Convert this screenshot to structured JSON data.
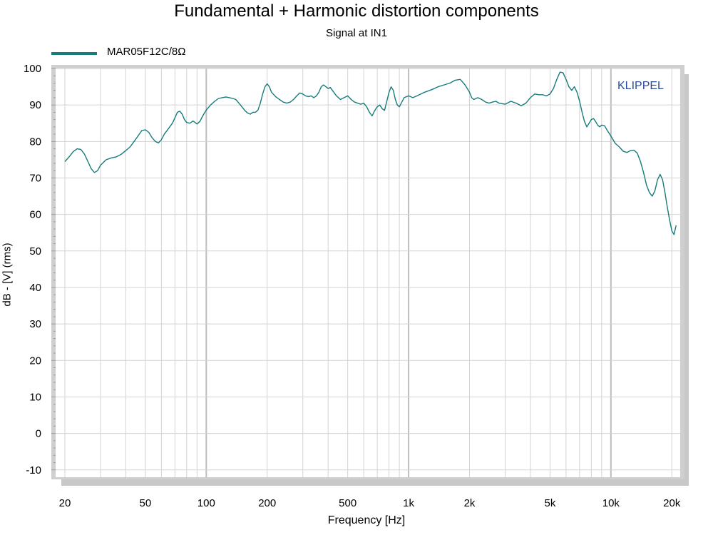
{
  "colors": {
    "series": "#167c7a",
    "grid": "#d3d3d3",
    "brand": "#2b4a9a"
  },
  "chart_data": {
    "type": "line",
    "title": "Fundamental + Harmonic distortion components",
    "subtitle": "Signal at IN1",
    "xlabel": "Frequency [Hz]",
    "ylabel": "dB - [V]  (rms)",
    "x_scale": "log",
    "xlim": [
      18,
      22000
    ],
    "ylim": [
      -12,
      100
    ],
    "grid": true,
    "legend_placement": "top-left",
    "watermark": "KLIPPEL",
    "x_ticks": [
      {
        "value": 20,
        "label": "20"
      },
      {
        "value": 50,
        "label": "50"
      },
      {
        "value": 100,
        "label": "100"
      },
      {
        "value": 200,
        "label": "200"
      },
      {
        "value": 500,
        "label": "500"
      },
      {
        "value": 1000,
        "label": "1k"
      },
      {
        "value": 2000,
        "label": "2k"
      },
      {
        "value": 5000,
        "label": "5k"
      },
      {
        "value": 10000,
        "label": "10k"
      },
      {
        "value": 20000,
        "label": "20k"
      }
    ],
    "y_ticks": [
      {
        "value": 100,
        "label": "100"
      },
      {
        "value": 90,
        "label": "90"
      },
      {
        "value": 80,
        "label": "80"
      },
      {
        "value": 70,
        "label": "70"
      },
      {
        "value": 60,
        "label": "60"
      },
      {
        "value": 50,
        "label": "50"
      },
      {
        "value": 40,
        "label": "40"
      },
      {
        "value": 30,
        "label": "30"
      },
      {
        "value": 20,
        "label": "20"
      },
      {
        "value": 10,
        "label": "10"
      },
      {
        "value": 0,
        "label": "0"
      },
      {
        "value": -10,
        "label": "-10"
      }
    ],
    "series": [
      {
        "name": "MAR05F12C/8Ω",
        "points": [
          [
            20,
            74.5
          ],
          [
            21,
            75.8
          ],
          [
            22,
            77.2
          ],
          [
            23,
            78.0
          ],
          [
            24,
            77.8
          ],
          [
            25,
            76.5
          ],
          [
            26,
            74.5
          ],
          [
            27,
            72.5
          ],
          [
            28,
            71.5
          ],
          [
            29,
            72.0
          ],
          [
            30,
            73.5
          ],
          [
            32,
            75.0
          ],
          [
            34,
            75.5
          ],
          [
            36,
            75.8
          ],
          [
            38,
            76.5
          ],
          [
            40,
            77.5
          ],
          [
            42,
            78.5
          ],
          [
            44,
            80.0
          ],
          [
            46,
            81.5
          ],
          [
            48,
            83.0
          ],
          [
            50,
            83.2
          ],
          [
            52,
            82.5
          ],
          [
            54,
            81.0
          ],
          [
            56,
            80.0
          ],
          [
            58,
            79.6
          ],
          [
            60,
            80.5
          ],
          [
            62,
            82.0
          ],
          [
            65,
            83.5
          ],
          [
            68,
            85.0
          ],
          [
            70,
            86.5
          ],
          [
            72,
            88.0
          ],
          [
            74,
            88.3
          ],
          [
            76,
            87.5
          ],
          [
            78,
            86.0
          ],
          [
            80,
            85.2
          ],
          [
            83,
            85.0
          ],
          [
            86,
            85.6
          ],
          [
            88,
            85.2
          ],
          [
            90,
            84.8
          ],
          [
            93,
            85.5
          ],
          [
            96,
            87.0
          ],
          [
            100,
            88.6
          ],
          [
            105,
            90.0
          ],
          [
            110,
            91.0
          ],
          [
            115,
            91.8
          ],
          [
            120,
            92.0
          ],
          [
            125,
            92.2
          ],
          [
            130,
            92.0
          ],
          [
            135,
            91.8
          ],
          [
            140,
            91.5
          ],
          [
            145,
            90.5
          ],
          [
            150,
            89.5
          ],
          [
            155,
            88.5
          ],
          [
            160,
            87.8
          ],
          [
            165,
            87.5
          ],
          [
            170,
            88.0
          ],
          [
            175,
            88.0
          ],
          [
            180,
            88.6
          ],
          [
            185,
            90.5
          ],
          [
            190,
            93.0
          ],
          [
            195,
            95.0
          ],
          [
            200,
            95.8
          ],
          [
            205,
            95.0
          ],
          [
            210,
            93.5
          ],
          [
            220,
            92.3
          ],
          [
            230,
            91.5
          ],
          [
            240,
            90.8
          ],
          [
            250,
            90.5
          ],
          [
            260,
            90.8
          ],
          [
            270,
            91.5
          ],
          [
            280,
            92.5
          ],
          [
            290,
            93.3
          ],
          [
            300,
            93.0
          ],
          [
            310,
            92.5
          ],
          [
            320,
            92.3
          ],
          [
            330,
            92.5
          ],
          [
            340,
            92.0
          ],
          [
            350,
            92.5
          ],
          [
            360,
            93.5
          ],
          [
            370,
            95.0
          ],
          [
            380,
            95.5
          ],
          [
            390,
            95.0
          ],
          [
            400,
            94.5
          ],
          [
            410,
            94.8
          ],
          [
            420,
            94.0
          ],
          [
            440,
            92.5
          ],
          [
            460,
            91.5
          ],
          [
            480,
            92.0
          ],
          [
            500,
            92.5
          ],
          [
            520,
            91.5
          ],
          [
            540,
            90.8
          ],
          [
            560,
            90.5
          ],
          [
            580,
            90.2
          ],
          [
            600,
            90.5
          ],
          [
            620,
            89.5
          ],
          [
            640,
            88.0
          ],
          [
            660,
            87.0
          ],
          [
            680,
            88.5
          ],
          [
            700,
            89.5
          ],
          [
            720,
            90.0
          ],
          [
            740,
            89.0
          ],
          [
            760,
            88.5
          ],
          [
            780,
            91.0
          ],
          [
            800,
            93.5
          ],
          [
            820,
            95.0
          ],
          [
            840,
            94.0
          ],
          [
            860,
            91.5
          ],
          [
            880,
            90.0
          ],
          [
            900,
            89.5
          ],
          [
            920,
            90.5
          ],
          [
            950,
            92.0
          ],
          [
            1000,
            92.5
          ],
          [
            1050,
            92.0
          ],
          [
            1100,
            92.5
          ],
          [
            1150,
            93.0
          ],
          [
            1200,
            93.5
          ],
          [
            1300,
            94.2
          ],
          [
            1400,
            95.0
          ],
          [
            1500,
            95.5
          ],
          [
            1600,
            96.0
          ],
          [
            1700,
            96.8
          ],
          [
            1800,
            97.0
          ],
          [
            1900,
            95.5
          ],
          [
            2000,
            93.5
          ],
          [
            2050,
            92.0
          ],
          [
            2100,
            91.5
          ],
          [
            2200,
            92.0
          ],
          [
            2300,
            91.5
          ],
          [
            2400,
            90.8
          ],
          [
            2500,
            90.5
          ],
          [
            2600,
            90.8
          ],
          [
            2700,
            91.0
          ],
          [
            2800,
            90.5
          ],
          [
            3000,
            90.2
          ],
          [
            3200,
            91.0
          ],
          [
            3400,
            90.5
          ],
          [
            3600,
            89.8
          ],
          [
            3800,
            90.5
          ],
          [
            4000,
            92.0
          ],
          [
            4200,
            93.0
          ],
          [
            4400,
            92.8
          ],
          [
            4600,
            92.8
          ],
          [
            4800,
            92.5
          ],
          [
            5000,
            93.0
          ],
          [
            5200,
            94.5
          ],
          [
            5400,
            97.0
          ],
          [
            5600,
            99.0
          ],
          [
            5800,
            98.8
          ],
          [
            6000,
            97.0
          ],
          [
            6200,
            95.0
          ],
          [
            6400,
            94.0
          ],
          [
            6600,
            95.0
          ],
          [
            6800,
            93.5
          ],
          [
            7000,
            91.0
          ],
          [
            7200,
            88.0
          ],
          [
            7400,
            85.5
          ],
          [
            7600,
            84.0
          ],
          [
            7800,
            85.0
          ],
          [
            8000,
            86.0
          ],
          [
            8200,
            86.3
          ],
          [
            8400,
            85.5
          ],
          [
            8600,
            84.5
          ],
          [
            8800,
            84.0
          ],
          [
            9000,
            84.5
          ],
          [
            9300,
            84.3
          ],
          [
            9600,
            83.0
          ],
          [
            10000,
            81.5
          ],
          [
            10500,
            79.5
          ],
          [
            11000,
            78.5
          ],
          [
            11500,
            77.3
          ],
          [
            12000,
            77.0
          ],
          [
            12500,
            77.5
          ],
          [
            13000,
            77.6
          ],
          [
            13500,
            76.8
          ],
          [
            14000,
            74.5
          ],
          [
            14500,
            71.5
          ],
          [
            15000,
            68.0
          ],
          [
            15500,
            66.0
          ],
          [
            16000,
            65.0
          ],
          [
            16500,
            66.5
          ],
          [
            17000,
            69.5
          ],
          [
            17500,
            71.0
          ],
          [
            18000,
            69.5
          ],
          [
            18500,
            66.0
          ],
          [
            19000,
            62.0
          ],
          [
            19500,
            58.5
          ],
          [
            20000,
            55.5
          ],
          [
            20500,
            54.5
          ],
          [
            21000,
            57.0
          ]
        ]
      }
    ]
  }
}
